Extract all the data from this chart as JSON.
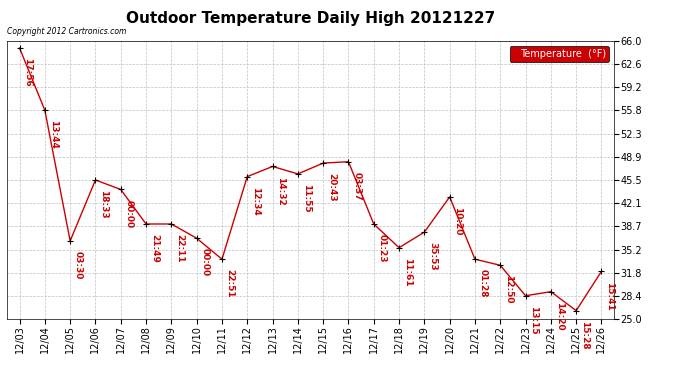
{
  "title": "Outdoor Temperature Daily High 20121227",
  "copyright": "Copyright 2012 Cartronics.com",
  "legend_label": "Temperature  (°F)",
  "dates": [
    "12/03",
    "12/04",
    "12/05",
    "12/06",
    "12/07",
    "12/08",
    "12/09",
    "12/10",
    "12/11",
    "12/12",
    "12/13",
    "12/14",
    "12/15",
    "12/16",
    "12/17",
    "12/18",
    "12/19",
    "12/20",
    "12/21",
    "12/22",
    "12/23",
    "12/24",
    "12/25",
    "12/26"
  ],
  "values": [
    65.0,
    55.8,
    36.5,
    45.5,
    44.1,
    39.0,
    39.0,
    36.9,
    33.8,
    46.0,
    47.5,
    46.4,
    48.0,
    48.2,
    39.0,
    35.5,
    37.8,
    43.0,
    33.8,
    32.9,
    28.4,
    29.0,
    26.2,
    32.0
  ],
  "annotations": [
    "17:56",
    "13:44",
    "03:30",
    "18:33",
    "00:00",
    "21:49",
    "22:11",
    "00:00",
    "22:51",
    "12:34",
    "14:32",
    "11:55",
    "20:43",
    "03:37",
    "01:23",
    "11:61",
    "35:53",
    "10:20",
    "01:28",
    "12:50",
    "13:15",
    "14:20",
    "15:28",
    "15:41"
  ],
  "line_color": "#cc0000",
  "marker_color": "#000000",
  "annotation_color": "#cc0000",
  "bg_color": "#ffffff",
  "grid_color": "#c0c0c0",
  "ylim": [
    25.0,
    66.0
  ],
  "yticks": [
    25.0,
    28.4,
    31.8,
    35.2,
    38.7,
    42.1,
    45.5,
    48.9,
    52.3,
    55.8,
    59.2,
    62.6,
    66.0
  ],
  "legend_bg": "#cc0000",
  "legend_text_color": "#ffffff",
  "title_fontsize": 11,
  "tick_fontsize": 7,
  "annotation_fontsize": 6.5
}
